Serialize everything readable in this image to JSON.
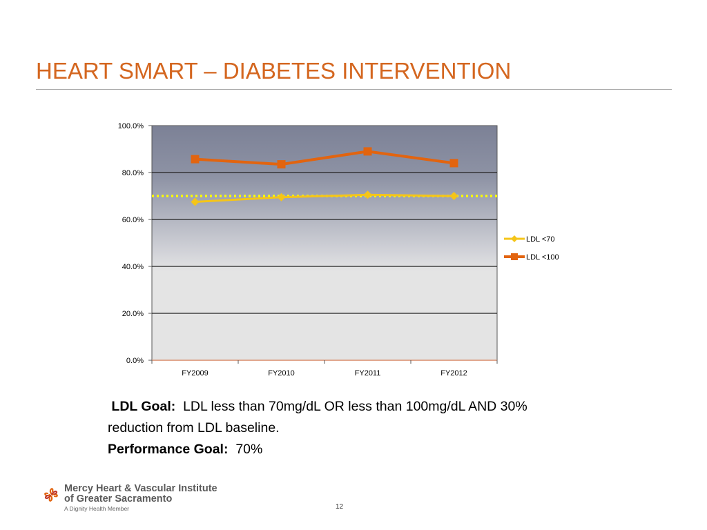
{
  "slide": {
    "title": "HEART SMART – DIABETES INTERVENTION",
    "page_number": "12"
  },
  "goals": {
    "ldl_goal_label": "LDL Goal:",
    "ldl_goal_text": "LDL less than 70mg/dL OR less than 100mg/dL AND 30% reduction from LDL baseline.",
    "performance_goal_label": "Performance Goal:",
    "performance_goal_value": "70%"
  },
  "logo": {
    "name_line1": "Mercy Heart & Vascular Institute",
    "name_line2": "of Greater Sacramento",
    "tagline": "A Dignity Health Member"
  },
  "colors": {
    "title": "#d4661f",
    "ldl70": "#f5c518",
    "ldl100": "#e2640f",
    "goal_line": "#ffff00"
  },
  "chart_data": {
    "type": "line",
    "categories": [
      "FY2009",
      "FY2010",
      "FY2011",
      "FY2012"
    ],
    "series": [
      {
        "name": "LDL <70",
        "values": [
          67.5,
          69.5,
          70.5,
          70.0
        ],
        "marker": "diamond",
        "color": "#f5c518"
      },
      {
        "name": "LDL <100",
        "values": [
          85.7,
          83.5,
          89.0,
          84.0
        ],
        "marker": "square",
        "color": "#e2640f"
      }
    ],
    "reference_line": {
      "value": 70,
      "style": "dotted",
      "color": "#ffff00"
    },
    "ylim": [
      0,
      100
    ],
    "yticks": [
      0,
      20,
      40,
      60,
      80,
      100
    ],
    "ytick_labels": [
      "0.0%",
      "20.0%",
      "40.0%",
      "60.0%",
      "80.0%",
      "100.0%"
    ],
    "grid": true,
    "legend_position": "right",
    "xlabel": "",
    "ylabel": ""
  }
}
